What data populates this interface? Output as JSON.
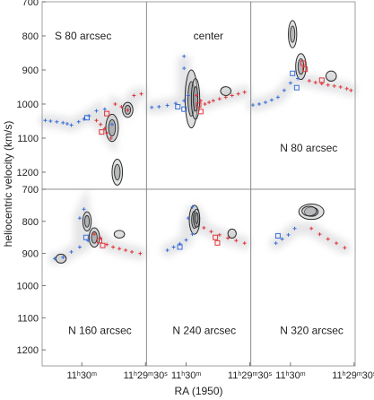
{
  "chart_data": {
    "type": "scatter",
    "layout": "2x3 panel grid",
    "xlabel": "RA (1950)",
    "ylabel": "heliocentric velocity (km/s)",
    "y_axis_inverted": true,
    "ylim_top_row": [
      700,
      1250
    ],
    "ylim_bottom_row": [
      700,
      1250
    ],
    "yticks_top_row": [
      700,
      800,
      900,
      1000,
      1100,
      1200
    ],
    "yticks_bottom_row": [
      700,
      800,
      900,
      1000,
      1100,
      1200
    ],
    "xtick_labels": [
      "11h30m",
      "11h29m30s"
    ],
    "colors": {
      "contour": "#2b2b2b",
      "blue_markers": "#3a6fd8",
      "red_markers": "#e0353a",
      "greyscale_emission": "#d8dadd",
      "frame": "#888888"
    },
    "marker_meaning": "blue squares/crosses = approaching side, red squares/crosses = receding side",
    "panels": [
      {
        "label": "S 80 arcsec",
        "blue_points": [
          [
            0.03,
            1048
          ],
          [
            0.08,
            1050
          ],
          [
            0.14,
            1052
          ],
          [
            0.2,
            1055
          ],
          [
            0.24,
            1058
          ],
          [
            0.28,
            1062
          ],
          [
            0.35,
            1052
          ],
          [
            0.4,
            1044
          ],
          [
            0.45,
            1035
          ],
          [
            0.52,
            1020
          ],
          [
            0.6,
            1015
          ],
          [
            0.67,
            1060
          ]
        ],
        "red_points": [
          [
            0.52,
            1048
          ],
          [
            0.56,
            1060
          ],
          [
            0.6,
            1072
          ],
          [
            0.62,
            1085
          ],
          [
            0.66,
            1100
          ],
          [
            0.7,
            1000
          ],
          [
            0.76,
            1008
          ],
          [
            0.82,
            1018
          ],
          [
            0.88,
            975
          ],
          [
            0.95,
            970
          ]
        ],
        "red_boxes": [
          [
            0.62,
            1028
          ],
          [
            0.57,
            1082
          ]
        ],
        "blue_boxes": [
          [
            0.43,
            1040
          ]
        ],
        "contours": [
          {
            "cx": 0.72,
            "cy": 1200,
            "rx": 0.05,
            "ry": 38
          },
          {
            "cx": 0.67,
            "cy": 1070,
            "rx": 0.06,
            "ry": 40
          },
          {
            "cx": 0.82,
            "cy": 1017,
            "rx": 0.05,
            "ry": 22
          }
        ]
      },
      {
        "label": "center",
        "blue_points": [
          [
            0.05,
            1010
          ],
          [
            0.12,
            1008
          ],
          [
            0.2,
            1004
          ],
          [
            0.28,
            998
          ],
          [
            0.36,
            990
          ],
          [
            0.4,
            975
          ],
          [
            0.36,
            860
          ],
          [
            0.36,
            895
          ]
        ],
        "red_points": [
          [
            0.48,
            975
          ],
          [
            0.52,
            990
          ],
          [
            0.56,
            1000
          ],
          [
            0.6,
            995
          ],
          [
            0.64,
            990
          ],
          [
            0.7,
            985
          ],
          [
            0.76,
            980
          ],
          [
            0.82,
            975
          ],
          [
            0.88,
            970
          ],
          [
            0.94,
            965
          ]
        ],
        "red_boxes": [
          [
            0.5,
            1003
          ],
          [
            0.52,
            1022
          ]
        ],
        "blue_boxes": [
          [
            0.3,
            1008
          ],
          [
            0.36,
            1015
          ]
        ],
        "contours": [
          {
            "cx": 0.43,
            "cy": 985,
            "rx": 0.06,
            "ry": 85
          },
          {
            "cx": 0.47,
            "cy": 985,
            "rx": 0.04,
            "ry": 60
          },
          {
            "cx": 0.76,
            "cy": 962,
            "rx": 0.05,
            "ry": 13
          }
        ]
      },
      {
        "label": "N 80 arcsec",
        "blue_points": [
          [
            0.02,
            1003
          ],
          [
            0.08,
            1000
          ],
          [
            0.14,
            995
          ],
          [
            0.2,
            988
          ],
          [
            0.26,
            980
          ],
          [
            0.32,
            960
          ],
          [
            0.38,
            938
          ],
          [
            0.45,
            925
          ]
        ],
        "red_points": [
          [
            0.56,
            932
          ],
          [
            0.62,
            937
          ],
          [
            0.68,
            940
          ],
          [
            0.74,
            944
          ],
          [
            0.8,
            947
          ],
          [
            0.86,
            950
          ],
          [
            0.92,
            955
          ],
          [
            0.96,
            960
          ]
        ],
        "red_boxes": [
          [
            0.5,
            880
          ],
          [
            0.52,
            898
          ],
          [
            0.68,
            930
          ]
        ],
        "blue_boxes": [
          [
            0.44,
            952
          ],
          [
            0.4,
            910
          ]
        ],
        "contours": [
          {
            "cx": 0.4,
            "cy": 795,
            "rx": 0.04,
            "ry": 40
          },
          {
            "cx": 0.48,
            "cy": 890,
            "rx": 0.05,
            "ry": 38
          },
          {
            "cx": 0.77,
            "cy": 918,
            "rx": 0.05,
            "ry": 15
          }
        ]
      },
      {
        "label": "N 160 arcsec",
        "blue_points": [
          [
            0.12,
            916
          ],
          [
            0.2,
            912
          ],
          [
            0.28,
            895
          ],
          [
            0.36,
            880
          ],
          [
            0.44,
            860
          ],
          [
            0.4,
            762
          ],
          [
            0.36,
            790
          ]
        ],
        "red_points": [
          [
            0.5,
            840
          ],
          [
            0.56,
            852
          ],
          [
            0.62,
            872
          ],
          [
            0.68,
            880
          ],
          [
            0.74,
            885
          ],
          [
            0.8,
            890
          ],
          [
            0.86,
            895
          ],
          [
            0.94,
            900
          ]
        ],
        "red_boxes": [
          [
            0.55,
            860
          ],
          [
            0.58,
            875
          ]
        ],
        "blue_boxes": [
          [
            0.42,
            850
          ]
        ],
        "contours": [
          {
            "cx": 0.43,
            "cy": 800,
            "rx": 0.04,
            "ry": 30
          },
          {
            "cx": 0.5,
            "cy": 850,
            "rx": 0.05,
            "ry": 30
          },
          {
            "cx": 0.18,
            "cy": 916,
            "rx": 0.05,
            "ry": 14
          },
          {
            "cx": 0.74,
            "cy": 840,
            "rx": 0.05,
            "ry": 12
          }
        ]
      },
      {
        "label": "N 240 arcsec",
        "blue_points": [
          [
            0.2,
            890
          ],
          [
            0.26,
            880
          ],
          [
            0.32,
            870
          ],
          [
            0.38,
            858
          ],
          [
            0.44,
            840
          ],
          [
            0.44,
            755
          ],
          [
            0.4,
            790
          ]
        ],
        "red_points": [
          [
            0.55,
            820
          ],
          [
            0.62,
            832
          ],
          [
            0.7,
            842
          ],
          [
            0.78,
            852
          ],
          [
            0.86,
            860
          ],
          [
            0.94,
            868
          ]
        ],
        "red_boxes": [
          [
            0.66,
            850
          ],
          [
            0.68,
            867
          ]
        ],
        "blue_boxes": [
          [
            0.32,
            880
          ]
        ],
        "contours": [
          {
            "cx": 0.46,
            "cy": 795,
            "rx": 0.05,
            "ry": 45
          },
          {
            "cx": 0.48,
            "cy": 790,
            "rx": 0.03,
            "ry": 28
          },
          {
            "cx": 0.82,
            "cy": 838,
            "rx": 0.04,
            "ry": 14
          }
        ]
      },
      {
        "label": "N 320 arcsec",
        "blue_points": [
          [
            0.24,
            868
          ],
          [
            0.3,
            855
          ],
          [
            0.36,
            842
          ],
          [
            0.42,
            822
          ]
        ],
        "red_points": [
          [
            0.58,
            822
          ],
          [
            0.66,
            840
          ],
          [
            0.74,
            855
          ],
          [
            0.82,
            868
          ],
          [
            0.9,
            882
          ]
        ],
        "red_boxes": [],
        "blue_boxes": [
          [
            0.26,
            845
          ]
        ],
        "contours": [
          {
            "cx": 0.58,
            "cy": 770,
            "rx": 0.12,
            "ry": 24
          },
          {
            "cx": 0.56,
            "cy": 768,
            "rx": 0.07,
            "ry": 15
          }
        ]
      }
    ]
  }
}
